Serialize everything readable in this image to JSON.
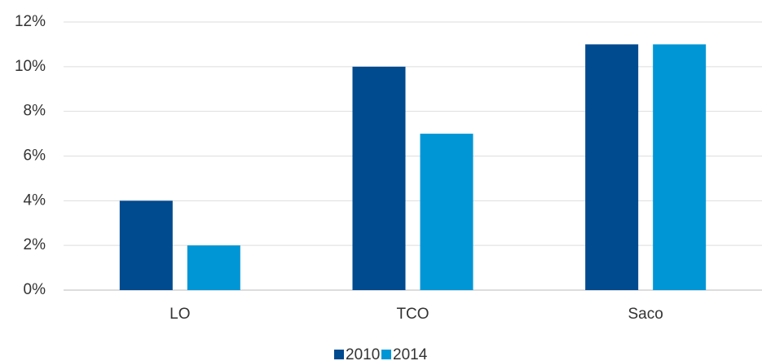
{
  "chart_data": {
    "type": "bar",
    "categories": [
      "LO",
      "TCO",
      "Saco"
    ],
    "series": [
      {
        "name": "2010",
        "color": "#004a8f",
        "values": [
          4,
          10,
          11
        ]
      },
      {
        "name": "2014",
        "color": "#0096d6",
        "values": [
          2,
          7,
          11
        ]
      }
    ],
    "ylim": [
      0,
      12
    ],
    "yticks": [
      {
        "value": 0,
        "label": "0%"
      },
      {
        "value": 2,
        "label": "2%"
      },
      {
        "value": 4,
        "label": "4%"
      },
      {
        "value": 6,
        "label": "6%"
      },
      {
        "value": 8,
        "label": "8%"
      },
      {
        "value": 10,
        "label": "10%"
      },
      {
        "value": 12,
        "label": "12%"
      }
    ],
    "grid": true,
    "legend": "bottom"
  }
}
